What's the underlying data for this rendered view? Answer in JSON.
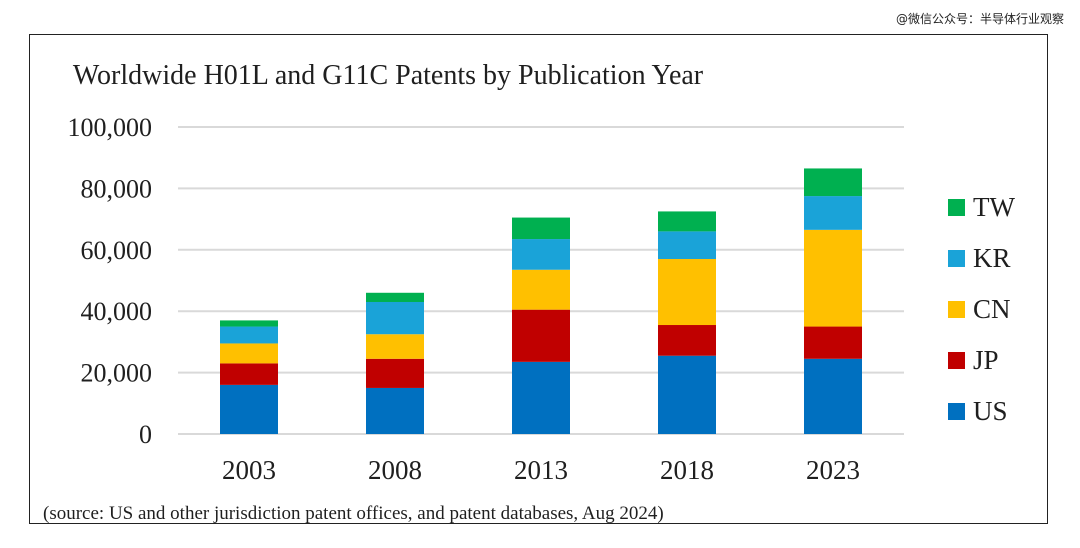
{
  "watermark": "@微信公众号：半导体行业观察",
  "chart_data": {
    "type": "bar",
    "stacked": true,
    "title": "Worldwide H01L  and G11C Patents by Publication Year",
    "categories": [
      "2003",
      "2008",
      "2013",
      "2018",
      "2023"
    ],
    "ylim": [
      0,
      100000
    ],
    "yticks": [
      "0",
      "20,000",
      "40,000",
      "60,000",
      "80,000",
      "100,000"
    ],
    "ytick_values": [
      0,
      20000,
      40000,
      60000,
      80000,
      100000
    ],
    "grid": true,
    "legend_position": "right",
    "series": [
      {
        "name": "US",
        "color": "#0070C0",
        "values": [
          16000,
          15000,
          23500,
          25500,
          24500
        ]
      },
      {
        "name": "JP",
        "color": "#C00000",
        "values": [
          7000,
          9500,
          17000,
          10000,
          10500
        ]
      },
      {
        "name": "CN",
        "color": "#FFC000",
        "values": [
          6500,
          8000,
          13000,
          21500,
          31500
        ]
      },
      {
        "name": "KR",
        "color": "#1AA3D8",
        "values": [
          5500,
          10500,
          10000,
          9000,
          11000
        ]
      },
      {
        "name": "TW",
        "color": "#00B050",
        "values": [
          2000,
          3000,
          7000,
          6500,
          9000
        ]
      }
    ],
    "source": "(source: US and other jurisdiction patent offices, and patent databases, Aug 2024)"
  }
}
